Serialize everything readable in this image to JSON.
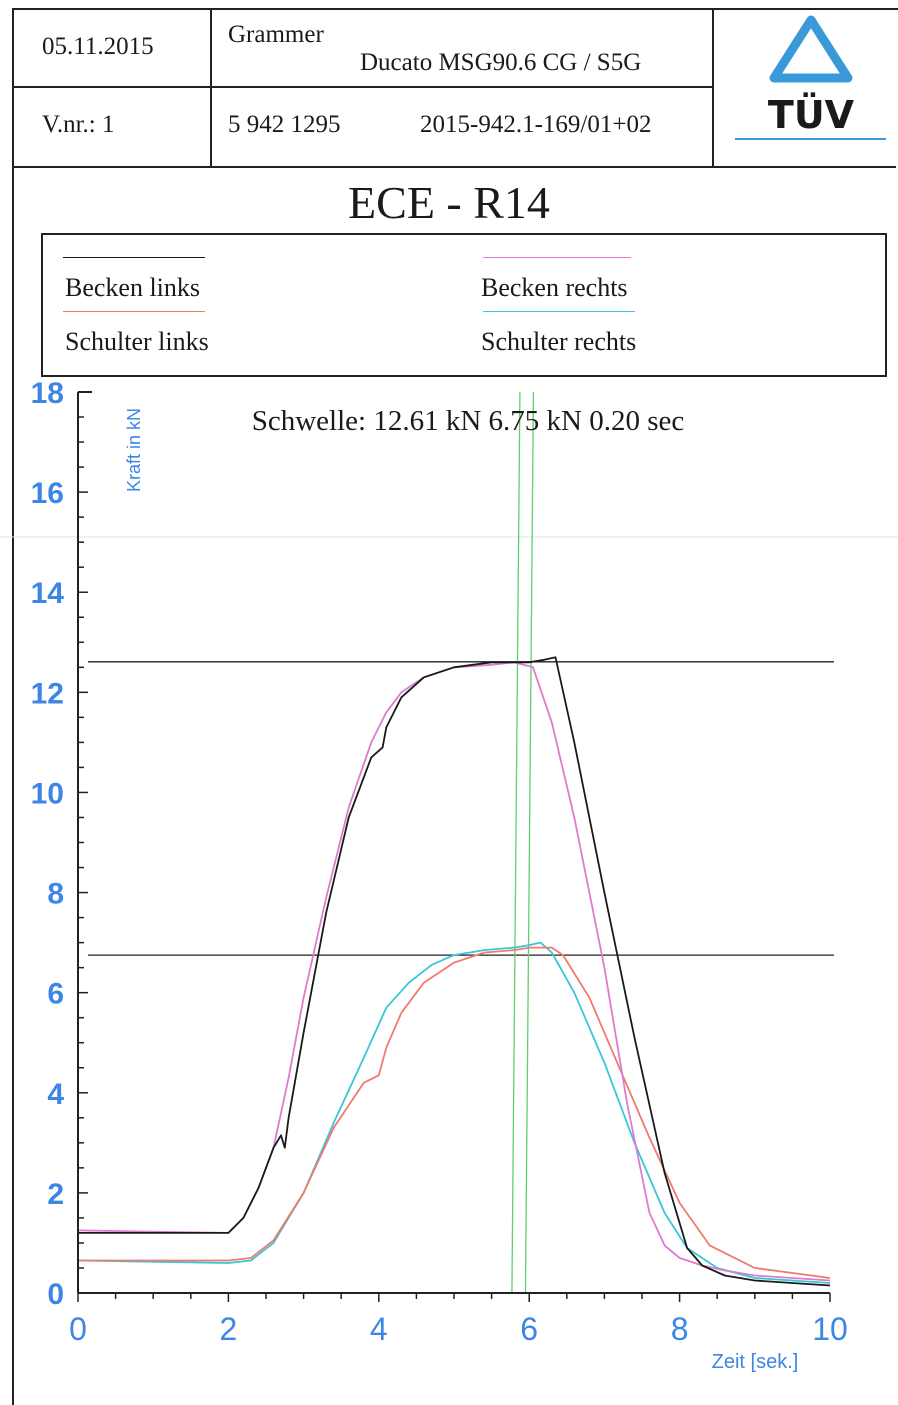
{
  "header": {
    "date": "05.11.2015",
    "company": "Grammer",
    "product": "Ducato MSG90.6 CG / S5G",
    "version": "V.nr.: 1",
    "part_number": "5 942 1295",
    "report_number": "2015-942.1-169/01+02",
    "logo_text": "TÜV"
  },
  "colors": {
    "becken_links": "#1a1a1a",
    "becken_rechts": "#e07ad0",
    "schulter_links": "#f07a6e",
    "schulter_rechts": "#39c6d6",
    "axis_labels": "#3d86e6",
    "marker_lines": "#5fd06a",
    "threshold_lines": "#222222"
  },
  "chart_data": {
    "type": "line",
    "title": "ECE - R14",
    "annotation": "Schwelle: 12.61 kN 6.75 kN   0.20 sec",
    "xlabel": "Zeit [sek.]",
    "ylabel": "Kraft in kN",
    "xlim": [
      0,
      10
    ],
    "ylim": [
      0,
      18
    ],
    "xticks": [
      0,
      2,
      4,
      6,
      8,
      10
    ],
    "yticks": [
      0,
      2,
      4,
      6,
      8,
      10,
      12,
      14,
      16,
      18
    ],
    "thresholds": [
      12.61,
      6.75
    ],
    "markers_x": [
      5.77,
      5.95
    ],
    "series": [
      {
        "name": "Becken links",
        "color_key": "becken_links",
        "x": [
          0,
          2.0,
          2.2,
          2.4,
          2.6,
          2.7,
          2.75,
          2.8,
          3.0,
          3.3,
          3.6,
          3.9,
          4.05,
          4.1,
          4.3,
          4.6,
          5.0,
          5.5,
          6.0,
          6.2,
          6.35,
          6.6,
          7.0,
          7.4,
          7.8,
          8.1,
          8.3,
          8.6,
          9.0,
          10.0
        ],
        "y": [
          1.2,
          1.2,
          1.5,
          2.1,
          2.9,
          3.15,
          2.9,
          3.5,
          5.2,
          7.6,
          9.5,
          10.7,
          10.9,
          11.3,
          11.9,
          12.3,
          12.5,
          12.6,
          12.6,
          12.65,
          12.7,
          11.0,
          8.0,
          5.1,
          2.4,
          0.9,
          0.55,
          0.35,
          0.25,
          0.15
        ]
      },
      {
        "name": "Becken rechts",
        "color_key": "becken_rechts",
        "x": [
          0,
          2.0,
          2.2,
          2.4,
          2.6,
          2.8,
          3.0,
          3.3,
          3.6,
          3.9,
          4.1,
          4.3,
          4.6,
          5.0,
          5.5,
          5.8,
          6.05,
          6.3,
          6.6,
          7.0,
          7.3,
          7.6,
          7.8,
          8.0,
          8.3,
          8.6,
          9.0,
          10.0
        ],
        "y": [
          1.25,
          1.2,
          1.5,
          2.1,
          2.9,
          4.3,
          5.9,
          7.9,
          9.7,
          11.0,
          11.6,
          12.0,
          12.3,
          12.5,
          12.55,
          12.6,
          12.5,
          11.4,
          9.5,
          6.5,
          3.8,
          1.6,
          0.95,
          0.7,
          0.55,
          0.45,
          0.35,
          0.25
        ]
      },
      {
        "name": "Schulter links",
        "color_key": "schulter_links",
        "x": [
          0,
          2.0,
          2.3,
          2.6,
          3.0,
          3.4,
          3.8,
          4.0,
          4.1,
          4.3,
          4.6,
          5.0,
          5.4,
          5.8,
          6.0,
          6.3,
          6.45,
          6.8,
          7.2,
          7.6,
          8.0,
          8.4,
          9.0,
          10.0
        ],
        "y": [
          0.65,
          0.65,
          0.7,
          1.05,
          2.0,
          3.3,
          4.2,
          4.35,
          4.9,
          5.6,
          6.2,
          6.6,
          6.8,
          6.85,
          6.9,
          6.9,
          6.75,
          5.9,
          4.5,
          3.1,
          1.8,
          0.95,
          0.5,
          0.3
        ]
      },
      {
        "name": "Schulter rechts",
        "color_key": "schulter_rechts",
        "x": [
          0,
          2.0,
          2.3,
          2.6,
          3.0,
          3.4,
          3.8,
          4.1,
          4.4,
          4.7,
          5.0,
          5.4,
          5.8,
          6.0,
          6.15,
          6.3,
          6.6,
          7.0,
          7.4,
          7.8,
          8.1,
          8.5,
          9.0,
          10.0
        ],
        "y": [
          0.65,
          0.6,
          0.65,
          1.0,
          2.0,
          3.4,
          4.7,
          5.7,
          6.2,
          6.55,
          6.75,
          6.85,
          6.9,
          6.95,
          7.0,
          6.8,
          6.0,
          4.6,
          3.0,
          1.6,
          0.9,
          0.5,
          0.3,
          0.2
        ]
      }
    ]
  }
}
